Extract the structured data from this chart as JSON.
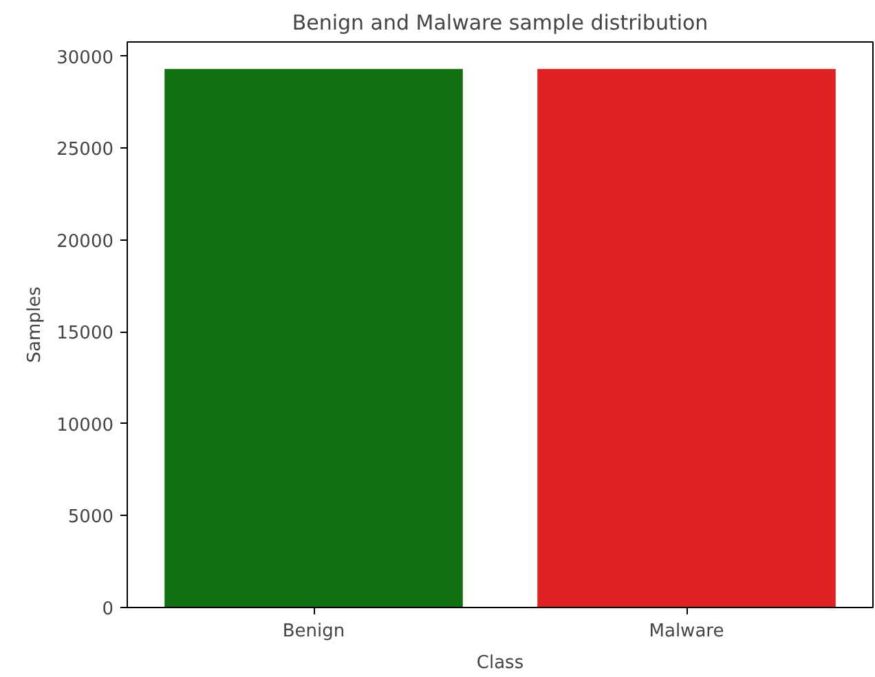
{
  "chart_data": {
    "type": "bar",
    "title": "Benign and Malware sample distribution",
    "xlabel": "Class",
    "ylabel": "Samples",
    "categories": [
      "Benign",
      "Malware"
    ],
    "values": [
      29300,
      29300
    ],
    "colors": [
      "#117011",
      "#de2121"
    ],
    "ylim": [
      0,
      30770
    ],
    "yticks": [
      0,
      5000,
      10000,
      15000,
      20000,
      25000,
      30000
    ],
    "grid": false
  }
}
